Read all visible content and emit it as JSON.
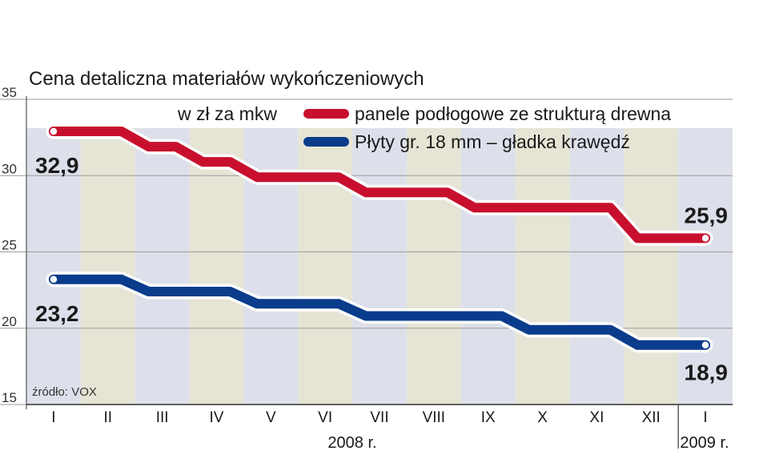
{
  "chart_data": {
    "type": "line",
    "title": "Cena detaliczna materiałów wykończeniowych",
    "unit_label": "w zł za mkw",
    "source": "źródło: VOX",
    "categories": [
      "I",
      "II",
      "III",
      "IV",
      "V",
      "VI",
      "VII",
      "VIII",
      "IX",
      "X",
      "XI",
      "XII",
      "I"
    ],
    "year_labels": [
      "2008 r.",
      "2009 r."
    ],
    "ylim": [
      15,
      35
    ],
    "yticks": [
      "15",
      "20",
      "25",
      "30",
      "35"
    ],
    "grid": true,
    "legend_position": "top-right",
    "series": [
      {
        "name": "panele podłogowe ze strukturą drewna",
        "color": "#c8102e",
        "values": [
          32.9,
          32.9,
          31.9,
          30.9,
          29.9,
          29.9,
          28.9,
          28.9,
          27.9,
          27.9,
          27.9,
          25.9,
          25.9
        ],
        "start_label": "32,9",
        "end_label": "25,9"
      },
      {
        "name": "Płyty gr. 18 mm – gładka krawędź",
        "color": "#0a3c8c",
        "values": [
          23.2,
          23.2,
          22.4,
          22.4,
          21.6,
          21.6,
          20.8,
          20.8,
          20.8,
          19.9,
          19.9,
          18.9,
          18.9
        ],
        "start_label": "23,2",
        "end_label": "18,9"
      }
    ]
  }
}
